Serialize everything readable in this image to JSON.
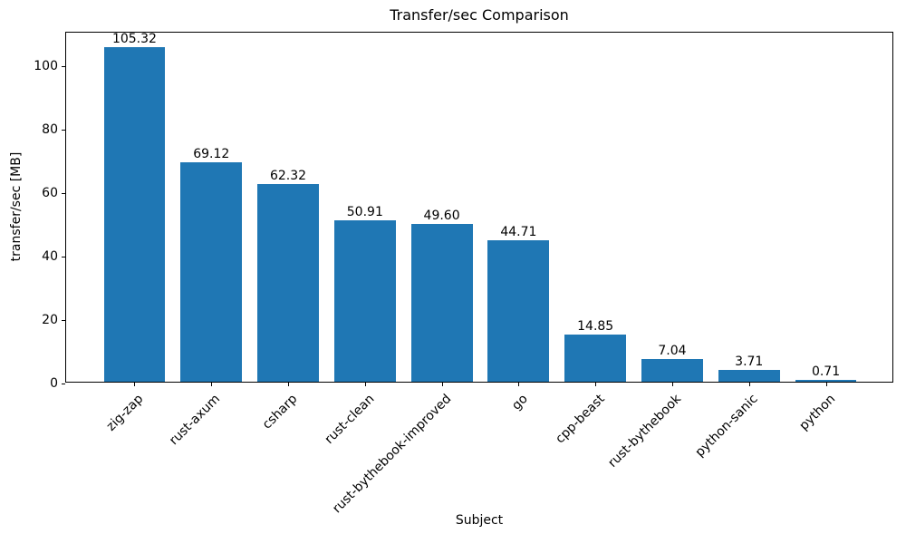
{
  "chart_data": {
    "type": "bar",
    "title": "Transfer/sec Comparison",
    "xlabel": "Subject",
    "ylabel": "transfer/sec [MB]",
    "categories": [
      "zig-zap",
      "rust-axum",
      "csharp",
      "rust-clean",
      "rust-bythebook-improved",
      "go",
      "cpp-beast",
      "rust-bythebook",
      "python-sanic",
      "python"
    ],
    "values": [
      105.32,
      69.12,
      62.32,
      50.91,
      49.6,
      44.71,
      14.85,
      7.04,
      3.71,
      0.71
    ],
    "value_label_format": "2-decimals",
    "yticks": [
      0,
      20,
      40,
      60,
      80,
      100
    ],
    "ylim": [
      0,
      110.59
    ],
    "bar_color": "#1f77b4",
    "background_color": "#ffffff",
    "text_color": "#000000",
    "grid": false,
    "legend": null,
    "x_tick_rotation_deg": 45
  }
}
